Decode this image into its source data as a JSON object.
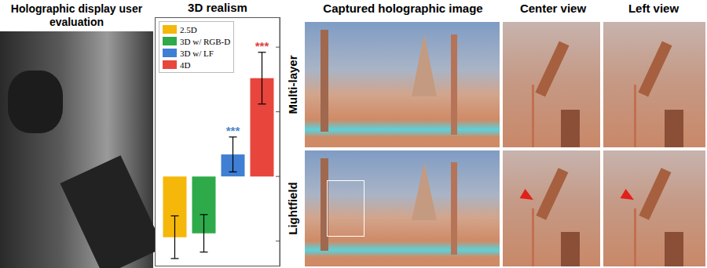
{
  "chart_data": {
    "type": "bar",
    "title": "3D realism",
    "categories": [
      null
    ],
    "series": [
      {
        "name": "2.5D",
        "color": "#f5b70a",
        "values": [
          -0.94
        ],
        "errors": [
          0.33
        ]
      },
      {
        "name": "3D w/ RGB-D",
        "color": "#2eaa4a",
        "values": [
          -0.88
        ],
        "errors": [
          0.29
        ]
      },
      {
        "name": "3D w/ LF",
        "color": "#3f7fd4",
        "values": [
          0.34
        ],
        "errors": [
          0.27
        ]
      },
      {
        "name": "4D",
        "color": "#e8453c",
        "values": [
          1.52
        ],
        "errors": [
          0.4
        ]
      }
    ],
    "ylim": [
      -1.38,
      2.45
    ],
    "yticks": [
      -1,
      0,
      1,
      2
    ],
    "grid": false,
    "legend": "upper left",
    "tick_labels": false,
    "annotations": [
      {
        "text": "***",
        "series": "3D w/ LF",
        "color": "#4a86c8"
      },
      {
        "text": "***",
        "series": "4D",
        "color": "#e04040"
      }
    ]
  },
  "figure": {
    "left_title": "Holographic display user evaluation",
    "right_title": "Captured holographic image",
    "column_titles": [
      "Center view",
      "Left view"
    ],
    "row_titles": [
      "Multi-layer",
      "Lightfield"
    ]
  }
}
